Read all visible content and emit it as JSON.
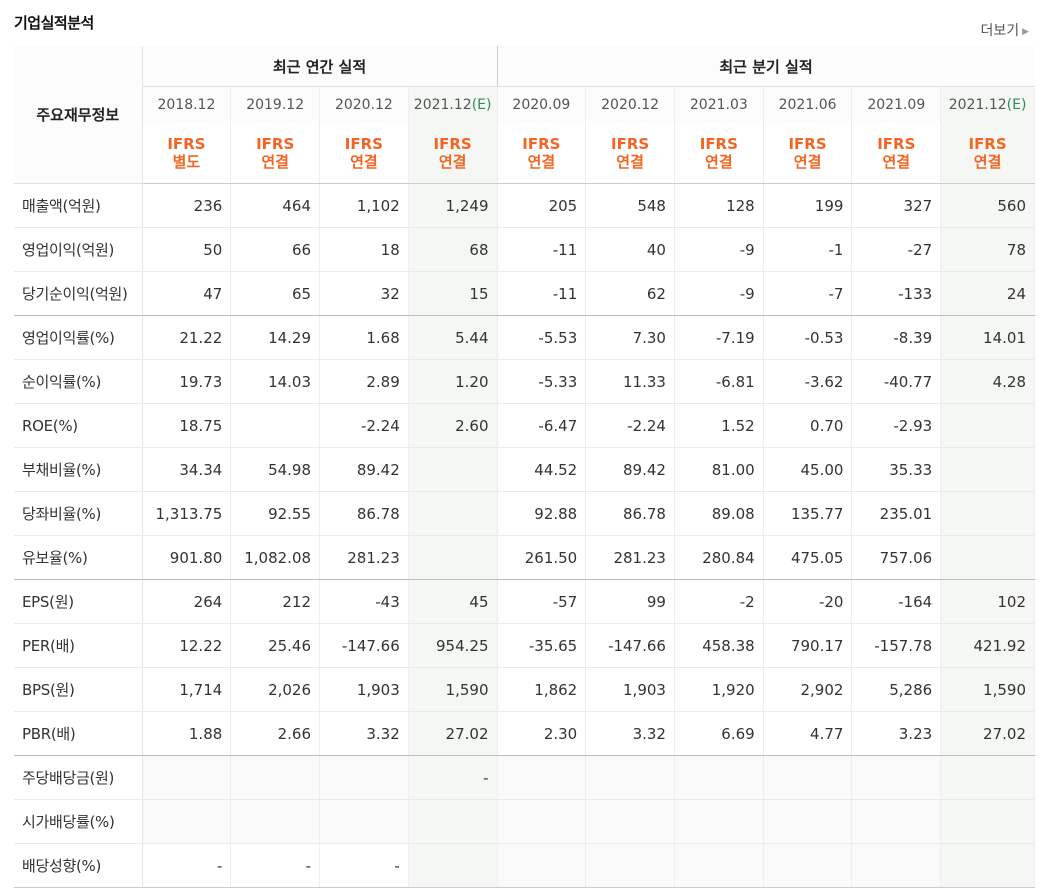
{
  "header": {
    "title": "기업실적분석",
    "more_label": "더보기"
  },
  "table": {
    "row_header_label": "주요재무정보",
    "annual_group_label": "최근 연간 실적",
    "quarter_group_label": "최근 분기 실적",
    "columns": [
      {
        "period": "2018.12",
        "ifrs": "IFRS",
        "basis": "별도",
        "estimate": false
      },
      {
        "period": "2019.12",
        "ifrs": "IFRS",
        "basis": "연결",
        "estimate": false
      },
      {
        "period": "2020.12",
        "ifrs": "IFRS",
        "basis": "연결",
        "estimate": false
      },
      {
        "period": "2021.12",
        "period_suffix": "(E)",
        "ifrs": "IFRS",
        "basis": "연결",
        "estimate": true
      },
      {
        "period": "2020.09",
        "ifrs": "IFRS",
        "basis": "연결",
        "estimate": false
      },
      {
        "period": "2020.12",
        "ifrs": "IFRS",
        "basis": "연결",
        "estimate": false
      },
      {
        "period": "2021.03",
        "ifrs": "IFRS",
        "basis": "연결",
        "estimate": false
      },
      {
        "period": "2021.06",
        "ifrs": "IFRS",
        "basis": "연결",
        "estimate": false
      },
      {
        "period": "2021.09",
        "ifrs": "IFRS",
        "basis": "연결",
        "estimate": false
      },
      {
        "period": "2021.12",
        "period_suffix": "(E)",
        "ifrs": "IFRS",
        "basis": "연결",
        "estimate": true
      }
    ],
    "rows": [
      {
        "label": "매출액(억원)",
        "values": [
          "236",
          "464",
          "1,102",
          "1,249",
          "205",
          "548",
          "128",
          "199",
          "327",
          "560"
        ]
      },
      {
        "label": "영업이익(억원)",
        "values": [
          "50",
          "66",
          "18",
          "68",
          "-11",
          "40",
          "-9",
          "-1",
          "-27",
          "78"
        ]
      },
      {
        "label": "당기순이익(억원)",
        "values": [
          "47",
          "65",
          "32",
          "15",
          "-11",
          "62",
          "-9",
          "-7",
          "-133",
          "24"
        ]
      },
      {
        "label": "영업이익률(%)",
        "values": [
          "21.22",
          "14.29",
          "1.68",
          "5.44",
          "-5.53",
          "7.30",
          "-7.19",
          "-0.53",
          "-8.39",
          "14.01"
        ]
      },
      {
        "label": "순이익률(%)",
        "values": [
          "19.73",
          "14.03",
          "2.89",
          "1.20",
          "-5.33",
          "11.33",
          "-6.81",
          "-3.62",
          "-40.77",
          "4.28"
        ]
      },
      {
        "label": "ROE(%)",
        "values": [
          "18.75",
          "",
          "-2.24",
          "2.60",
          "-6.47",
          "-2.24",
          "1.52",
          "0.70",
          "-2.93",
          ""
        ]
      },
      {
        "label": "부채비율(%)",
        "values": [
          "34.34",
          "54.98",
          "89.42",
          "",
          "44.52",
          "89.42",
          "81.00",
          "45.00",
          "35.33",
          ""
        ]
      },
      {
        "label": "당좌비율(%)",
        "values": [
          "1,313.75",
          "92.55",
          "86.78",
          "",
          "92.88",
          "86.78",
          "89.08",
          "135.77",
          "235.01",
          ""
        ]
      },
      {
        "label": "유보율(%)",
        "values": [
          "901.80",
          "1,082.08",
          "281.23",
          "",
          "261.50",
          "281.23",
          "280.84",
          "475.05",
          "757.06",
          ""
        ]
      },
      {
        "label": "EPS(원)",
        "values": [
          "264",
          "212",
          "-43",
          "45",
          "-57",
          "99",
          "-2",
          "-20",
          "-164",
          "102"
        ]
      },
      {
        "label": "PER(배)",
        "values": [
          "12.22",
          "25.46",
          "-147.66",
          "954.25",
          "-35.65",
          "-147.66",
          "458.38",
          "790.17",
          "-157.78",
          "421.92"
        ]
      },
      {
        "label": "BPS(원)",
        "values": [
          "1,714",
          "2,026",
          "1,903",
          "1,590",
          "1,862",
          "1,903",
          "1,920",
          "2,902",
          "5,286",
          "1,590"
        ]
      },
      {
        "label": "PBR(배)",
        "values": [
          "1.88",
          "2.66",
          "3.32",
          "27.02",
          "2.30",
          "3.32",
          "6.69",
          "4.77",
          "3.23",
          "27.02"
        ]
      },
      {
        "label": "주당배당금(원)",
        "values": [
          "",
          "",
          "",
          "-",
          "",
          "",
          "",
          "",
          "",
          ""
        ]
      },
      {
        "label": "시가배당률(%)",
        "values": [
          "",
          "",
          "",
          "",
          "",
          "",
          "",
          "",
          "",
          ""
        ]
      },
      {
        "label": "배당성향(%)",
        "values": [
          "-",
          "-",
          "-",
          "",
          "",
          "",
          "",
          "",
          "",
          ""
        ]
      }
    ],
    "section_breaks_after_row": [
      2,
      8,
      12
    ]
  },
  "colors": {
    "negative": "#d0021b",
    "ifrs_orange": "#f26522",
    "estimate_green": "#2e8b57",
    "estimate_bg": "#f4f7f3"
  }
}
